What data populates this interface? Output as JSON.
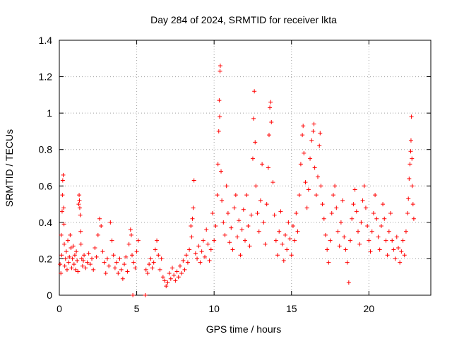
{
  "chart_data": {
    "type": "scatter",
    "title": "Day 284 of 2024, SRMTID for receiver lkta",
    "xlabel": "GPS time / hours",
    "ylabel": "SRMTID / TECUs",
    "xlim": [
      0,
      24
    ],
    "ylim": [
      0,
      1.4
    ],
    "xticks": [
      0,
      5,
      10,
      15,
      20
    ],
    "xtick_labels": [
      "0",
      "5",
      "10",
      "15",
      "20"
    ],
    "yticks": [
      0,
      0.2,
      0.4,
      0.6,
      0.8,
      1.0,
      1.2,
      1.4
    ],
    "ytick_labels": [
      "0",
      "0.2",
      "0.4",
      "0.6",
      "0.8",
      "1",
      "1.2",
      "1.4"
    ],
    "grid": true,
    "marker": "+",
    "color": "#ff0000",
    "series": [
      {
        "name": "SRMTID",
        "points": [
          [
            0.05,
            0.17
          ],
          [
            0.1,
            0.12
          ],
          [
            0.12,
            0.33
          ],
          [
            0.15,
            0.22
          ],
          [
            0.18,
            0.46
          ],
          [
            0.2,
            0.55
          ],
          [
            0.22,
            0.63
          ],
          [
            0.25,
            0.66
          ],
          [
            0.28,
            0.48
          ],
          [
            0.3,
            0.39
          ],
          [
            0.32,
            0.28
          ],
          [
            0.35,
            0.16
          ],
          [
            0.4,
            0.2
          ],
          [
            0.45,
            0.24
          ],
          [
            0.5,
            0.14
          ],
          [
            0.55,
            0.3
          ],
          [
            0.6,
            0.18
          ],
          [
            0.65,
            0.21
          ],
          [
            0.7,
            0.33
          ],
          [
            0.75,
            0.26
          ],
          [
            0.8,
            0.15
          ],
          [
            0.85,
            0.2
          ],
          [
            0.9,
            0.27
          ],
          [
            0.95,
            0.17
          ],
          [
            1.0,
            0.22
          ],
          [
            1.05,
            0.14
          ],
          [
            1.1,
            0.24
          ],
          [
            1.15,
            0.19
          ],
          [
            1.2,
            0.13
          ],
          [
            1.25,
            0.5
          ],
          [
            1.28,
            0.55
          ],
          [
            1.3,
            0.52
          ],
          [
            1.32,
            0.48
          ],
          [
            1.35,
            0.44
          ],
          [
            1.38,
            0.35
          ],
          [
            1.4,
            0.28
          ],
          [
            1.45,
            0.2
          ],
          [
            1.5,
            0.16
          ],
          [
            1.55,
            0.19
          ],
          [
            1.6,
            0.22
          ],
          [
            1.7,
            0.15
          ],
          [
            1.8,
            0.18
          ],
          [
            1.9,
            0.23
          ],
          [
            2.0,
            0.17
          ],
          [
            2.1,
            0.2
          ],
          [
            2.2,
            0.14
          ],
          [
            2.3,
            0.26
          ],
          [
            2.4,
            0.21
          ],
          [
            2.5,
            0.33
          ],
          [
            2.6,
            0.42
          ],
          [
            2.7,
            0.38
          ],
          [
            2.8,
            0.24
          ],
          [
            2.9,
            0.18
          ],
          [
            3.0,
            0.12
          ],
          [
            3.1,
            0.2
          ],
          [
            3.2,
            0.16
          ],
          [
            3.3,
            0.4
          ],
          [
            3.4,
            0.3
          ],
          [
            3.5,
            0.22
          ],
          [
            3.6,
            0.15
          ],
          [
            3.7,
            0.18
          ],
          [
            3.8,
            0.12
          ],
          [
            3.9,
            0.2
          ],
          [
            4.0,
            0.14
          ],
          [
            4.1,
            0.09
          ],
          [
            4.2,
            0.17
          ],
          [
            4.3,
            0.21
          ],
          [
            4.4,
            0.13
          ],
          [
            4.5,
            0.28
          ],
          [
            4.6,
            0.36
          ],
          [
            4.65,
            0.33
          ],
          [
            4.7,
            0.22
          ],
          [
            4.75,
            0.0
          ],
          [
            4.8,
            0.18
          ],
          [
            4.9,
            0.15
          ],
          [
            5.0,
            0.24
          ],
          [
            5.1,
            0.3
          ],
          [
            5.55,
            0.0
          ],
          [
            5.6,
            0.14
          ],
          [
            5.7,
            0.12
          ],
          [
            5.8,
            0.17
          ],
          [
            5.9,
            0.2
          ],
          [
            6.0,
            0.15
          ],
          [
            6.1,
            0.18
          ],
          [
            6.2,
            0.25
          ],
          [
            6.3,
            0.3
          ],
          [
            6.4,
            0.22
          ],
          [
            6.5,
            0.14
          ],
          [
            6.6,
            0.2
          ],
          [
            6.7,
            0.1
          ],
          [
            6.8,
            0.08
          ],
          [
            6.9,
            0.05
          ],
          [
            7.0,
            0.07
          ],
          [
            7.1,
            0.12
          ],
          [
            7.2,
            0.09
          ],
          [
            7.3,
            0.15
          ],
          [
            7.4,
            0.11
          ],
          [
            7.5,
            0.08
          ],
          [
            7.6,
            0.13
          ],
          [
            7.7,
            0.1
          ],
          [
            7.8,
            0.16
          ],
          [
            7.9,
            0.12
          ],
          [
            8.0,
            0.19
          ],
          [
            8.1,
            0.14
          ],
          [
            8.2,
            0.22
          ],
          [
            8.3,
            0.18
          ],
          [
            8.4,
            0.25
          ],
          [
            8.5,
            0.38
          ],
          [
            8.55,
            0.32
          ],
          [
            8.6,
            0.42
          ],
          [
            8.65,
            0.48
          ],
          [
            8.7,
            0.63
          ],
          [
            8.8,
            0.23
          ],
          [
            8.9,
            0.2
          ],
          [
            9.0,
            0.27
          ],
          [
            9.1,
            0.18
          ],
          [
            9.2,
            0.24
          ],
          [
            9.3,
            0.3
          ],
          [
            9.4,
            0.21
          ],
          [
            9.5,
            0.36
          ],
          [
            9.6,
            0.28
          ],
          [
            9.7,
            0.19
          ],
          [
            9.8,
            0.25
          ],
          [
            9.9,
            0.45
          ],
          [
            10.0,
            0.3
          ],
          [
            10.1,
            0.38
          ],
          [
            10.2,
            0.55
          ],
          [
            10.25,
            0.72
          ],
          [
            10.3,
            0.9
          ],
          [
            10.33,
            1.07
          ],
          [
            10.36,
            0.98
          ],
          [
            10.38,
            1.23
          ],
          [
            10.4,
            1.26
          ],
          [
            10.45,
            0.68
          ],
          [
            10.5,
            0.52
          ],
          [
            10.6,
            0.4
          ],
          [
            10.7,
            0.33
          ],
          [
            10.8,
            0.6
          ],
          [
            10.9,
            0.45
          ],
          [
            11.0,
            0.29
          ],
          [
            11.1,
            0.37
          ],
          [
            11.2,
            0.25
          ],
          [
            11.3,
            0.48
          ],
          [
            11.4,
            0.55
          ],
          [
            11.5,
            0.32
          ],
          [
            11.6,
            0.41
          ],
          [
            11.7,
            0.22
          ],
          [
            11.8,
            0.36
          ],
          [
            11.9,
            0.47
          ],
          [
            12.0,
            0.3
          ],
          [
            12.1,
            0.55
          ],
          [
            12.2,
            0.38
          ],
          [
            12.3,
            0.27
          ],
          [
            12.4,
            0.44
          ],
          [
            12.5,
            0.75
          ],
          [
            12.55,
            0.97
          ],
          [
            12.6,
            1.12
          ],
          [
            12.65,
            0.84
          ],
          [
            12.7,
            0.6
          ],
          [
            12.8,
            0.45
          ],
          [
            12.9,
            0.35
          ],
          [
            13.0,
            0.52
          ],
          [
            13.1,
            0.72
          ],
          [
            13.2,
            0.4
          ],
          [
            13.3,
            0.28
          ],
          [
            13.4,
            0.5
          ],
          [
            13.5,
            0.7
          ],
          [
            13.55,
            0.88
          ],
          [
            13.6,
            1.03
          ],
          [
            13.65,
            1.06
          ],
          [
            13.7,
            0.95
          ],
          [
            13.8,
            0.62
          ],
          [
            13.9,
            0.44
          ],
          [
            14.0,
            0.3
          ],
          [
            14.1,
            0.22
          ],
          [
            14.2,
            0.35
          ],
          [
            14.3,
            0.46
          ],
          [
            14.4,
            0.28
          ],
          [
            14.5,
            0.19
          ],
          [
            14.6,
            0.33
          ],
          [
            14.7,
            0.25
          ],
          [
            14.8,
            0.4
          ],
          [
            14.9,
            0.31
          ],
          [
            15.0,
            0.22
          ],
          [
            15.1,
            0.38
          ],
          [
            15.2,
            0.3
          ],
          [
            15.3,
            0.45
          ],
          [
            15.4,
            0.35
          ],
          [
            15.5,
            0.55
          ],
          [
            15.6,
            0.72
          ],
          [
            15.7,
            0.88
          ],
          [
            15.75,
            0.93
          ],
          [
            15.8,
            0.78
          ],
          [
            15.9,
            0.62
          ],
          [
            16.0,
            0.48
          ],
          [
            16.1,
            0.58
          ],
          [
            16.2,
            0.75
          ],
          [
            16.3,
            0.85
          ],
          [
            16.4,
            0.9
          ],
          [
            16.45,
            0.94
          ],
          [
            16.5,
            0.7
          ],
          [
            16.6,
            0.55
          ],
          [
            16.7,
            0.65
          ],
          [
            16.8,
            0.82
          ],
          [
            16.85,
            0.89
          ],
          [
            16.9,
            0.6
          ],
          [
            17.0,
            0.5
          ],
          [
            17.1,
            0.42
          ],
          [
            17.2,
            0.33
          ],
          [
            17.3,
            0.25
          ],
          [
            17.4,
            0.18
          ],
          [
            17.5,
            0.3
          ],
          [
            17.6,
            0.45
          ],
          [
            17.7,
            0.55
          ],
          [
            17.8,
            0.6
          ],
          [
            17.9,
            0.48
          ],
          [
            18.0,
            0.35
          ],
          [
            18.1,
            0.27
          ],
          [
            18.2,
            0.4
          ],
          [
            18.3,
            0.52
          ],
          [
            18.4,
            0.32
          ],
          [
            18.5,
            0.25
          ],
          [
            18.6,
            0.18
          ],
          [
            18.7,
            0.07
          ],
          [
            18.8,
            0.3
          ],
          [
            18.9,
            0.42
          ],
          [
            19.0,
            0.5
          ],
          [
            19.1,
            0.58
          ],
          [
            19.2,
            0.46
          ],
          [
            19.3,
            0.35
          ],
          [
            19.4,
            0.28
          ],
          [
            19.5,
            0.4
          ],
          [
            19.6,
            0.52
          ],
          [
            19.7,
            0.6
          ],
          [
            19.8,
            0.48
          ],
          [
            19.9,
            0.38
          ],
          [
            20.0,
            0.3
          ],
          [
            20.1,
            0.24
          ],
          [
            20.2,
            0.35
          ],
          [
            20.3,
            0.45
          ],
          [
            20.4,
            0.55
          ],
          [
            20.5,
            0.42
          ],
          [
            20.6,
            0.32
          ],
          [
            20.7,
            0.25
          ],
          [
            20.8,
            0.38
          ],
          [
            20.9,
            0.5
          ],
          [
            21.0,
            0.42
          ],
          [
            21.1,
            0.3
          ],
          [
            21.2,
            0.22
          ],
          [
            21.3,
            0.35
          ],
          [
            21.4,
            0.45
          ],
          [
            21.5,
            0.3
          ],
          [
            21.6,
            0.25
          ],
          [
            21.7,
            0.2
          ],
          [
            21.8,
            0.32
          ],
          [
            21.9,
            0.26
          ],
          [
            22.0,
            0.18
          ],
          [
            22.1,
            0.24
          ],
          [
            22.2,
            0.3
          ],
          [
            22.3,
            0.22
          ],
          [
            22.4,
            0.35
          ],
          [
            22.5,
            0.45
          ],
          [
            22.55,
            0.53
          ],
          [
            22.6,
            0.64
          ],
          [
            22.65,
            0.72
          ],
          [
            22.7,
            0.79
          ],
          [
            22.72,
            0.85
          ],
          [
            22.75,
            0.98
          ],
          [
            22.78,
            0.75
          ],
          [
            22.8,
            0.6
          ],
          [
            22.85,
            0.5
          ],
          [
            22.9,
            0.42
          ]
        ]
      }
    ]
  }
}
